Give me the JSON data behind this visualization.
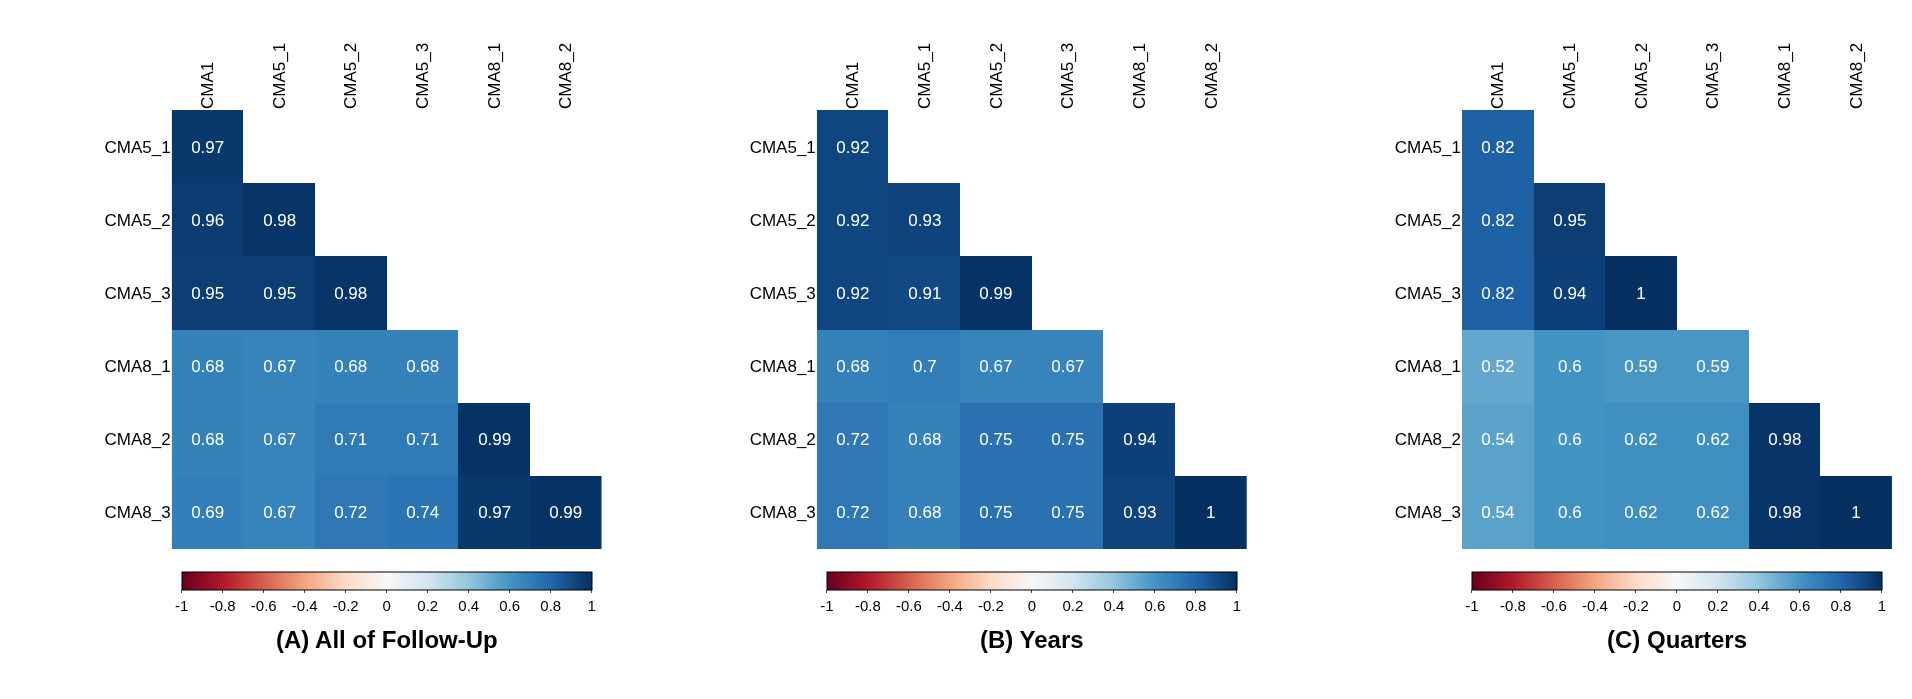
{
  "chart_data": [
    {
      "type": "heatmap",
      "title": "(A) All of Follow-Up",
      "categories": [
        "CMA1",
        "CMA5_1",
        "CMA5_2",
        "CMA5_3",
        "CMA8_1",
        "CMA8_2"
      ],
      "y_categories": [
        "CMA5_1",
        "CMA5_2",
        "CMA5_3",
        "CMA8_1",
        "CMA8_2",
        "CMA8_3"
      ],
      "cells": [
        [
          0.97,
          null,
          null,
          null,
          null,
          null
        ],
        [
          0.96,
          0.98,
          null,
          null,
          null,
          null
        ],
        [
          0.95,
          0.95,
          0.98,
          null,
          null,
          null
        ],
        [
          0.68,
          0.67,
          0.68,
          0.68,
          null,
          null
        ],
        [
          0.68,
          0.67,
          0.71,
          0.71,
          0.99,
          null
        ],
        [
          0.69,
          0.67,
          0.72,
          0.74,
          0.97,
          0.99
        ]
      ],
      "data_labels": true,
      "clim": [
        -1,
        1
      ],
      "cticks": [
        -1,
        -0.8,
        -0.6,
        -0.4,
        -0.2,
        0,
        0.2,
        0.4,
        0.6,
        0.8,
        1
      ]
    },
    {
      "type": "heatmap",
      "title": "(B) Years",
      "categories": [
        "CMA1",
        "CMA5_1",
        "CMA5_2",
        "CMA5_3",
        "CMA8_1",
        "CMA8_2"
      ],
      "y_categories": [
        "CMA5_1",
        "CMA5_2",
        "CMA5_3",
        "CMA8_1",
        "CMA8_2",
        "CMA8_3"
      ],
      "cells": [
        [
          0.92,
          null,
          null,
          null,
          null,
          null
        ],
        [
          0.92,
          0.93,
          null,
          null,
          null,
          null
        ],
        [
          0.92,
          0.91,
          0.99,
          null,
          null,
          null
        ],
        [
          0.68,
          0.7,
          0.67,
          0.67,
          null,
          null
        ],
        [
          0.72,
          0.68,
          0.75,
          0.75,
          0.94,
          null
        ],
        [
          0.72,
          0.68,
          0.75,
          0.75,
          0.93,
          1
        ]
      ],
      "data_labels": true,
      "clim": [
        -1,
        1
      ],
      "cticks": [
        -1,
        -0.8,
        -0.6,
        -0.4,
        -0.2,
        0,
        0.2,
        0.4,
        0.6,
        0.8,
        1
      ]
    },
    {
      "type": "heatmap",
      "title": "(C) Quarters",
      "categories": [
        "CMA1",
        "CMA5_1",
        "CMA5_2",
        "CMA5_3",
        "CMA8_1",
        "CMA8_2"
      ],
      "y_categories": [
        "CMA5_1",
        "CMA5_2",
        "CMA5_3",
        "CMA8_1",
        "CMA8_2",
        "CMA8_3"
      ],
      "cells": [
        [
          0.82,
          null,
          null,
          null,
          null,
          null
        ],
        [
          0.82,
          0.95,
          null,
          null,
          null,
          null
        ],
        [
          0.82,
          0.94,
          1,
          null,
          null,
          null
        ],
        [
          0.52,
          0.6,
          0.59,
          0.59,
          null,
          null
        ],
        [
          0.54,
          0.6,
          0.62,
          0.62,
          0.98,
          null
        ],
        [
          0.54,
          0.6,
          0.62,
          0.62,
          0.98,
          1
        ]
      ],
      "data_labels": true,
      "clim": [
        -1,
        1
      ],
      "cticks": [
        -1,
        -0.8,
        -0.6,
        -0.4,
        -0.2,
        0,
        0.2,
        0.4,
        0.6,
        0.8,
        1
      ]
    }
  ]
}
